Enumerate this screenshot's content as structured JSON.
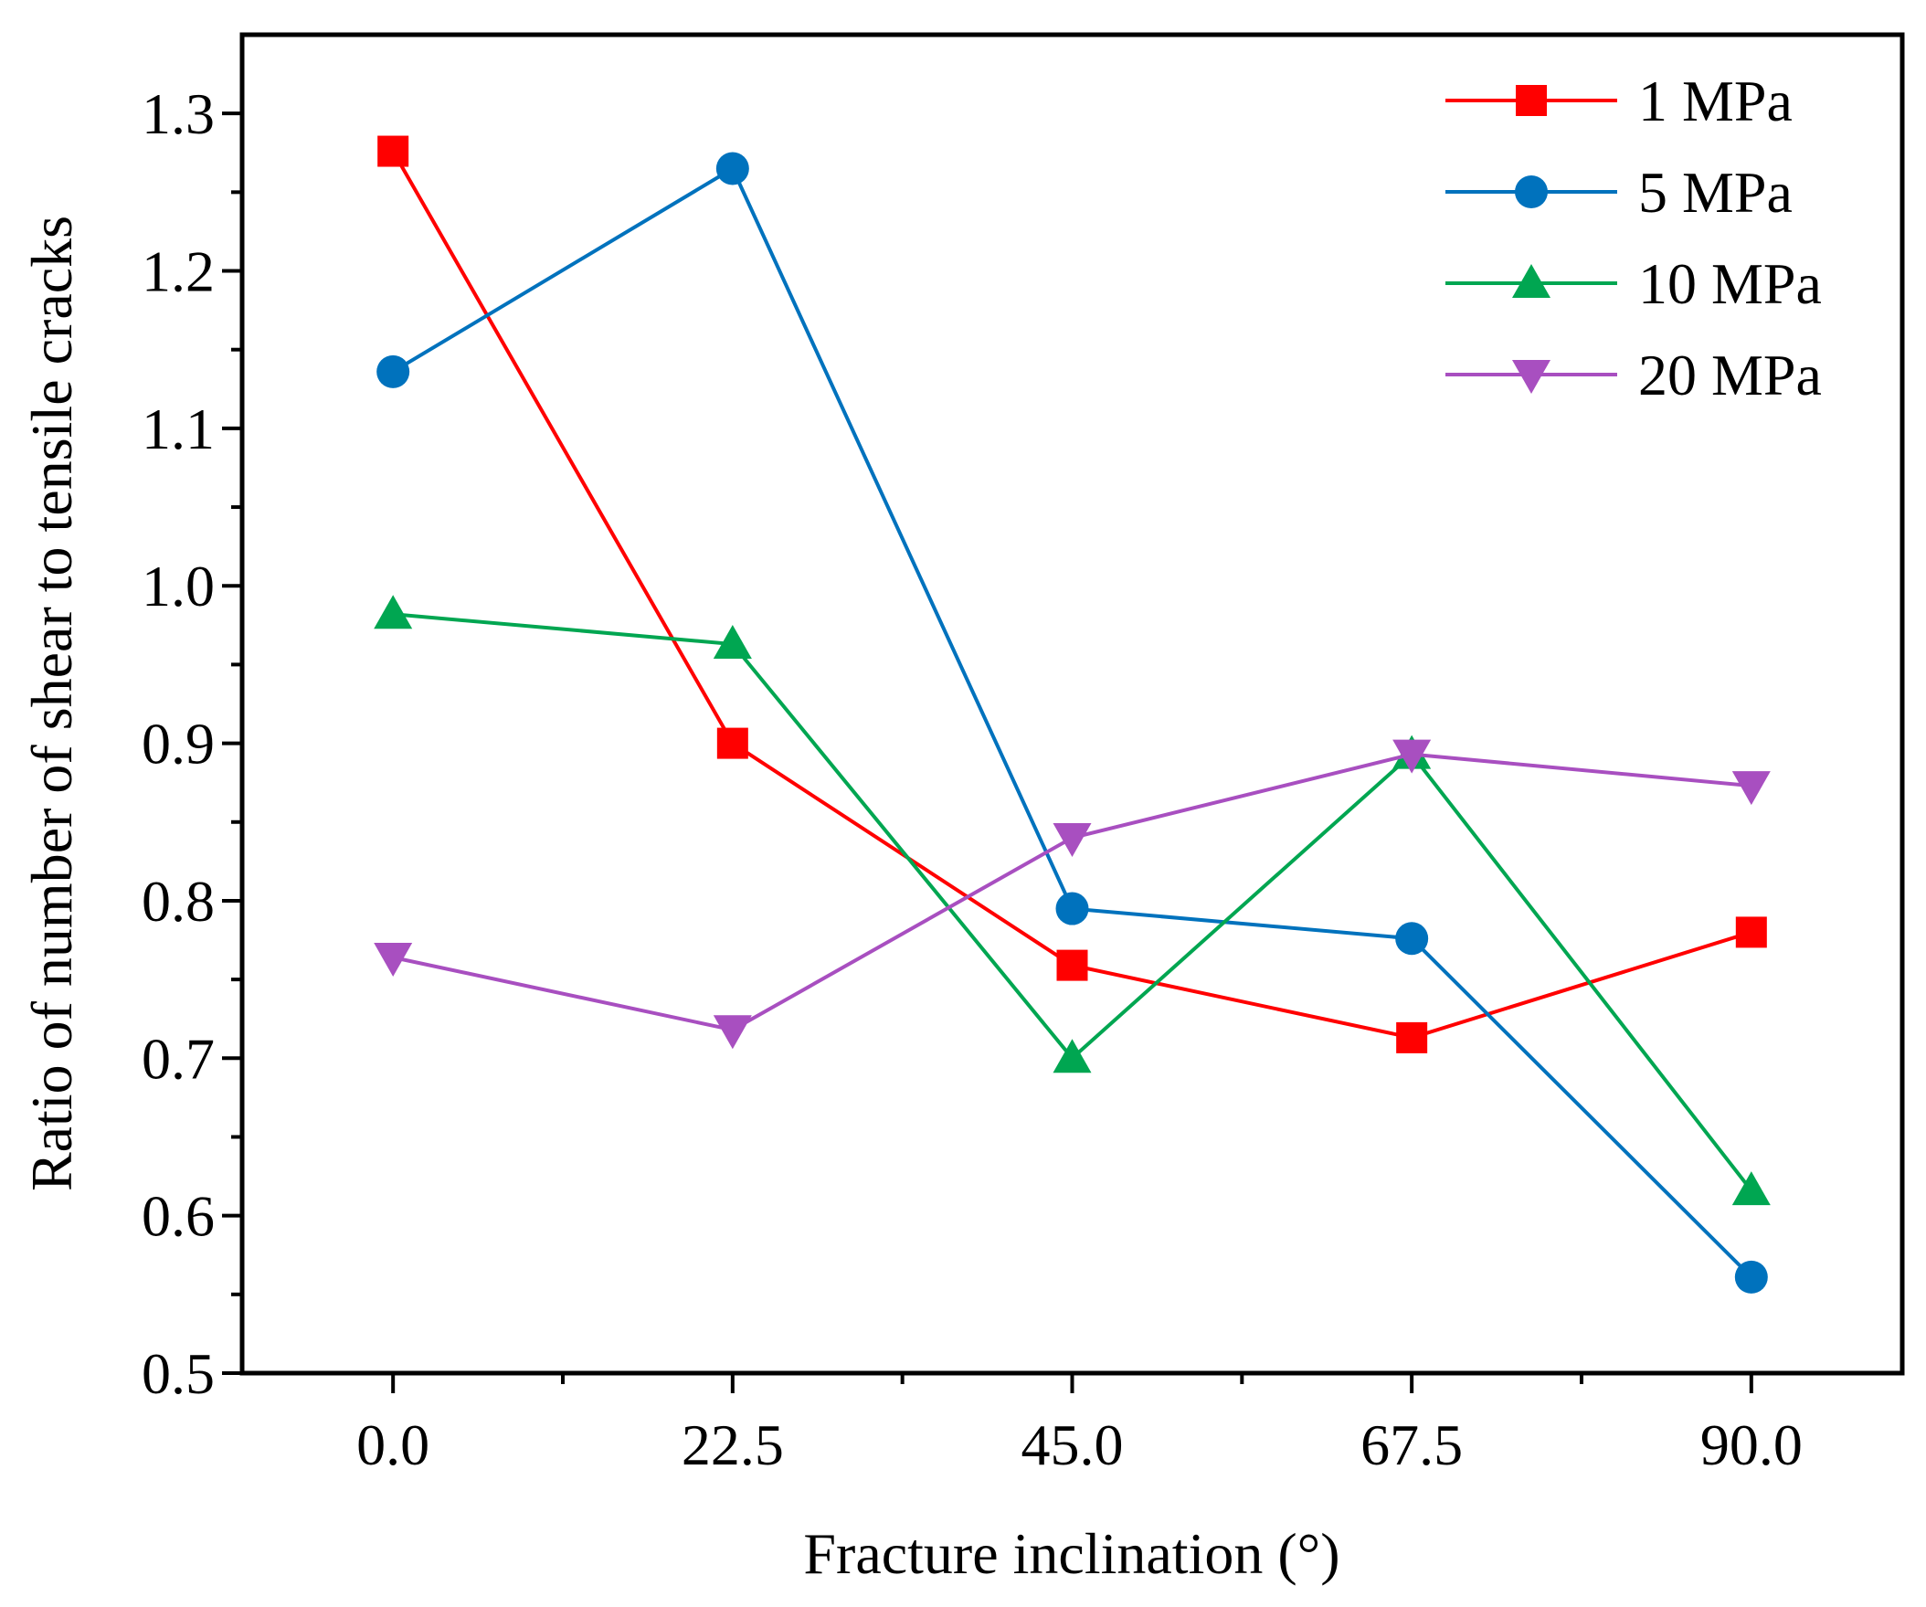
{
  "chart_data": {
    "type": "line",
    "title": "",
    "xlabel": "Fracture inclination (°)",
    "ylabel": "Ratio of number of shear to tensile cracks",
    "x": [
      0.0,
      22.5,
      45.0,
      67.5,
      90.0
    ],
    "x_tick_labels": [
      "0.0",
      "22.5",
      "45.0",
      "67.5",
      "90.0"
    ],
    "y_tick_labels": [
      "0.5",
      "0.6",
      "0.7",
      "0.8",
      "0.9",
      "1.0",
      "1.1",
      "1.2",
      "1.3"
    ],
    "xlim": [
      -10,
      100
    ],
    "ylim": [
      0.5,
      1.35
    ],
    "grid": false,
    "legend_position": "top-right",
    "series": [
      {
        "name": "1 MPa",
        "color": "#ff0000",
        "marker": "square",
        "values": [
          1.276,
          0.9,
          0.759,
          0.713,
          0.78
        ]
      },
      {
        "name": "5 MPa",
        "color": "#0072bd",
        "marker": "circle",
        "values": [
          1.136,
          1.265,
          0.795,
          0.776,
          0.561
        ]
      },
      {
        "name": "10 MPa",
        "color": "#00a651",
        "marker": "triangle-up",
        "values": [
          0.982,
          0.963,
          0.7,
          0.893,
          0.616
        ]
      },
      {
        "name": "20 MPa",
        "color": "#a84fc0",
        "marker": "triangle-down",
        "values": [
          0.764,
          0.718,
          0.84,
          0.893,
          0.873
        ]
      }
    ]
  }
}
